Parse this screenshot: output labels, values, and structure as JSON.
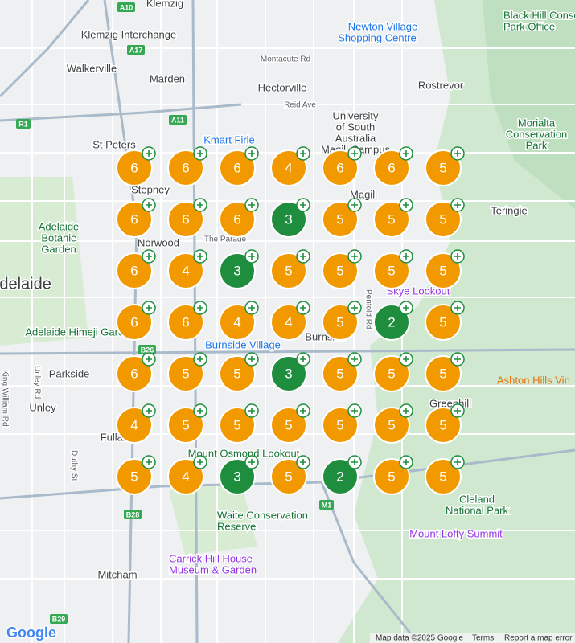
{
  "map": {
    "places": {
      "klemzig": "Klemzig",
      "klemzig_interchange": "Klemzig Interchange",
      "walkerville": "Walkerville",
      "marden": "Marden",
      "montacute": "Montacute Rd",
      "hectorville": "Hectorville",
      "reid": "Reid Ave",
      "newton": [
        "Newton Village",
        "Shopping Centre"
      ],
      "rostrevor": "Rostrevor",
      "black_hill": [
        "Black Hill Conse",
        "Park Office"
      ],
      "unisa": [
        "University",
        "of South",
        "Australia",
        "Magill Campus"
      ],
      "morialta": [
        "Morialta",
        "Conservation",
        "Park"
      ],
      "kmart": "Kmart Firle",
      "st_peters": "St Peters",
      "stepney": "Stepney",
      "magill": "Magill",
      "teringie": "Teringie",
      "norwood": "Norwood",
      "parade": "The Parade",
      "botanic": [
        "Adelaide",
        "Botanic",
        "Garden"
      ],
      "adelaide": "Adelaide",
      "skye": "Skye Lookout",
      "himeji": "Adelaide Himeji Garden",
      "burnside_village": "Burnside Village",
      "burnside": "Burnside",
      "parkside": "Parkside",
      "ashton": "Ashton Hills Vin",
      "unley": "Unley",
      "greenhill": "Greenhill",
      "fullarton": "Fullarton",
      "osmond": "Mount Osmond Lookout",
      "cleland": [
        "Cleland",
        "National Park"
      ],
      "waite": [
        "Waite Conservation",
        "Reserve"
      ],
      "lofty": "Mount Lofty Summit",
      "carrick": [
        "Carrick Hill House",
        "Museum & Garden"
      ],
      "mitcham": "Mitcham",
      "penfold": "Penfold Rd",
      "king_william": "King William Rd",
      "unley_rd": "Unley Rd",
      "duthy": "Duthy St"
    },
    "roads": {
      "a10": "A10",
      "a17": "A17",
      "a11": "A11",
      "r1": "R1",
      "b28": "B28",
      "b26": "B26",
      "m1": "M1",
      "b29": "B29"
    }
  },
  "clusters": [
    [
      {
        "count": 6,
        "color": "#f29900"
      },
      {
        "count": 6,
        "color": "#f29900"
      },
      {
        "count": 6,
        "color": "#f29900"
      },
      {
        "count": 4,
        "color": "#f29900"
      },
      {
        "count": 6,
        "color": "#f29900"
      },
      {
        "count": 6,
        "color": "#f29900"
      },
      {
        "count": 5,
        "color": "#f29900"
      }
    ],
    [
      {
        "count": 6,
        "color": "#f29900"
      },
      {
        "count": 6,
        "color": "#f29900"
      },
      {
        "count": 6,
        "color": "#f29900"
      },
      {
        "count": 3,
        "color": "#1e8e3e"
      },
      {
        "count": 5,
        "color": "#f29900"
      },
      {
        "count": 5,
        "color": "#f29900"
      },
      {
        "count": 5,
        "color": "#f29900"
      }
    ],
    [
      {
        "count": 6,
        "color": "#f29900"
      },
      {
        "count": 4,
        "color": "#f29900"
      },
      {
        "count": 3,
        "color": "#1e8e3e"
      },
      {
        "count": 5,
        "color": "#f29900"
      },
      {
        "count": 5,
        "color": "#f29900"
      },
      {
        "count": 5,
        "color": "#f29900"
      },
      {
        "count": 5,
        "color": "#f29900"
      }
    ],
    [
      {
        "count": 6,
        "color": "#f29900"
      },
      {
        "count": 6,
        "color": "#f29900"
      },
      {
        "count": 4,
        "color": "#f29900"
      },
      {
        "count": 4,
        "color": "#f29900"
      },
      {
        "count": 5,
        "color": "#f29900"
      },
      {
        "count": 2,
        "color": "#1e8e3e"
      },
      {
        "count": 5,
        "color": "#f29900"
      }
    ],
    [
      {
        "count": 6,
        "color": "#f29900"
      },
      {
        "count": 5,
        "color": "#f29900"
      },
      {
        "count": 5,
        "color": "#f29900"
      },
      {
        "count": 3,
        "color": "#1e8e3e"
      },
      {
        "count": 5,
        "color": "#f29900"
      },
      {
        "count": 5,
        "color": "#f29900"
      },
      {
        "count": 5,
        "color": "#f29900"
      }
    ],
    [
      {
        "count": 4,
        "color": "#f29900"
      },
      {
        "count": 5,
        "color": "#f29900"
      },
      {
        "count": 5,
        "color": "#f29900"
      },
      {
        "count": 5,
        "color": "#f29900"
      },
      {
        "count": 5,
        "color": "#f29900"
      },
      {
        "count": 5,
        "color": "#f29900"
      },
      {
        "count": 5,
        "color": "#f29900"
      }
    ],
    [
      {
        "count": 5,
        "color": "#f29900"
      },
      {
        "count": 4,
        "color": "#f29900"
      },
      {
        "count": 3,
        "color": "#1e8e3e"
      },
      {
        "count": 5,
        "color": "#f29900"
      },
      {
        "count": 2,
        "color": "#1e8e3e"
      },
      {
        "count": 5,
        "color": "#f29900"
      },
      {
        "count": 5,
        "color": "#f29900"
      }
    ]
  ],
  "footer": {
    "logo": "Google",
    "attribution": "Map data ©2025 Google",
    "terms": "Terms",
    "report": "Report a map error"
  }
}
